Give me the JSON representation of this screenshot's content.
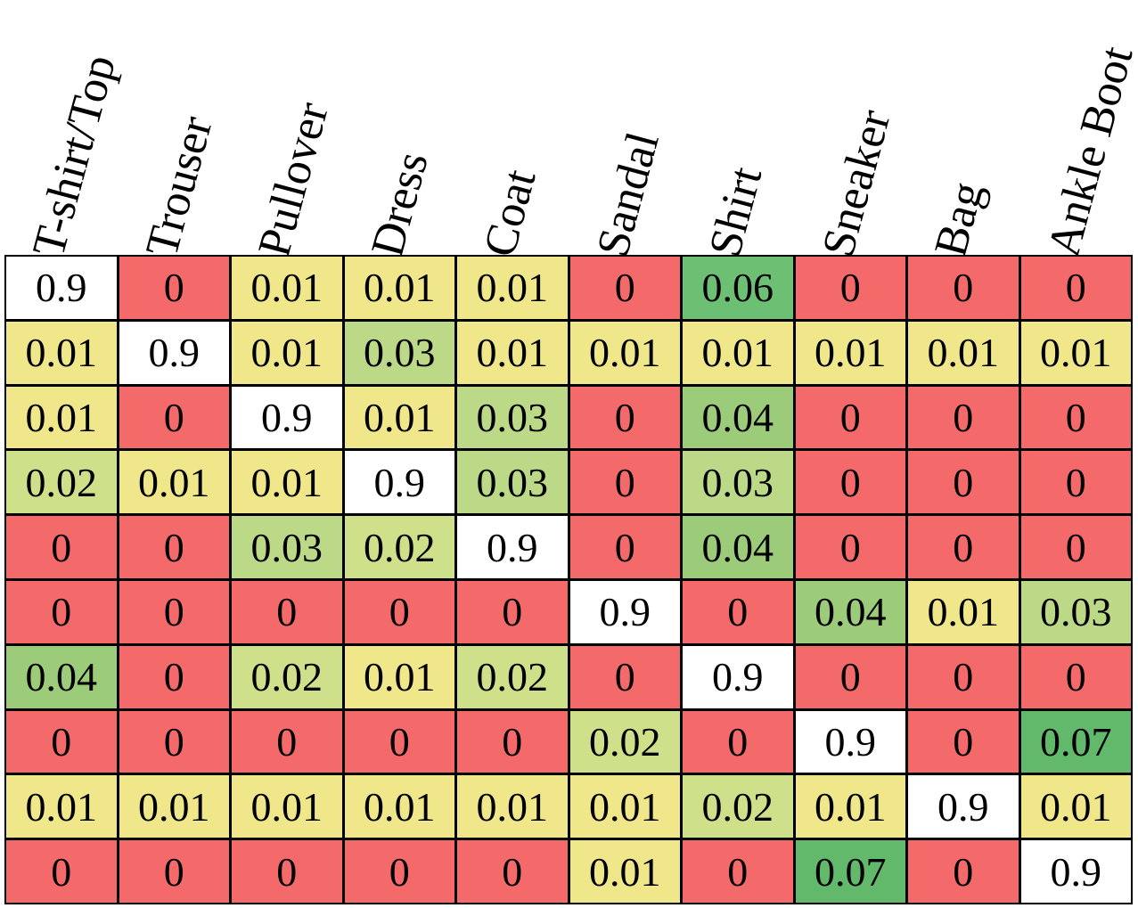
{
  "chart_data": {
    "type": "heatmap",
    "columns": [
      "T-shirt/Top",
      "Trouser",
      "Pullover",
      "Dress",
      "Coat",
      "Sandal",
      "Shirt",
      "Sneaker",
      "Bag",
      "Ankle Boot"
    ],
    "values": [
      [
        "0.9",
        "0",
        "0.01",
        "0.01",
        "0.01",
        "0",
        "0.06",
        "0",
        "0",
        "0"
      ],
      [
        "0.01",
        "0.9",
        "0.01",
        "0.03",
        "0.01",
        "0.01",
        "0.01",
        "0.01",
        "0.01",
        "0.01"
      ],
      [
        "0.01",
        "0",
        "0.9",
        "0.01",
        "0.03",
        "0",
        "0.04",
        "0",
        "0",
        "0"
      ],
      [
        "0.02",
        "0.01",
        "0.01",
        "0.9",
        "0.03",
        "0",
        "0.03",
        "0",
        "0",
        "0"
      ],
      [
        "0",
        "0",
        "0.03",
        "0.02",
        "0.9",
        "0",
        "0.04",
        "0",
        "0",
        "0"
      ],
      [
        "0",
        "0",
        "0",
        "0",
        "0",
        "0.9",
        "0",
        "0.04",
        "0.01",
        "0.03"
      ],
      [
        "0.04",
        "0",
        "0.02",
        "0.01",
        "0.02",
        "0",
        "0.9",
        "0",
        "0",
        "0"
      ],
      [
        "0",
        "0",
        "0",
        "0",
        "0",
        "0.02",
        "0",
        "0.9",
        "0",
        "0.07"
      ],
      [
        "0.01",
        "0.01",
        "0.01",
        "0.01",
        "0.01",
        "0.01",
        "0.02",
        "0.01",
        "0.9",
        "0.01"
      ],
      [
        "0",
        "0",
        "0",
        "0",
        "0",
        "0.01",
        "0",
        "0.07",
        "0",
        "0.9"
      ]
    ],
    "color_scale": {
      "0": "#f46a6a",
      "0.01": "#f0e68a",
      "0.02": "#cfe08a",
      "0.03": "#bcd987",
      "0.04": "#9ccc7a",
      "0.06": "#6dbf74",
      "0.07": "#62b86b",
      "0.9": "#ffffff"
    }
  }
}
